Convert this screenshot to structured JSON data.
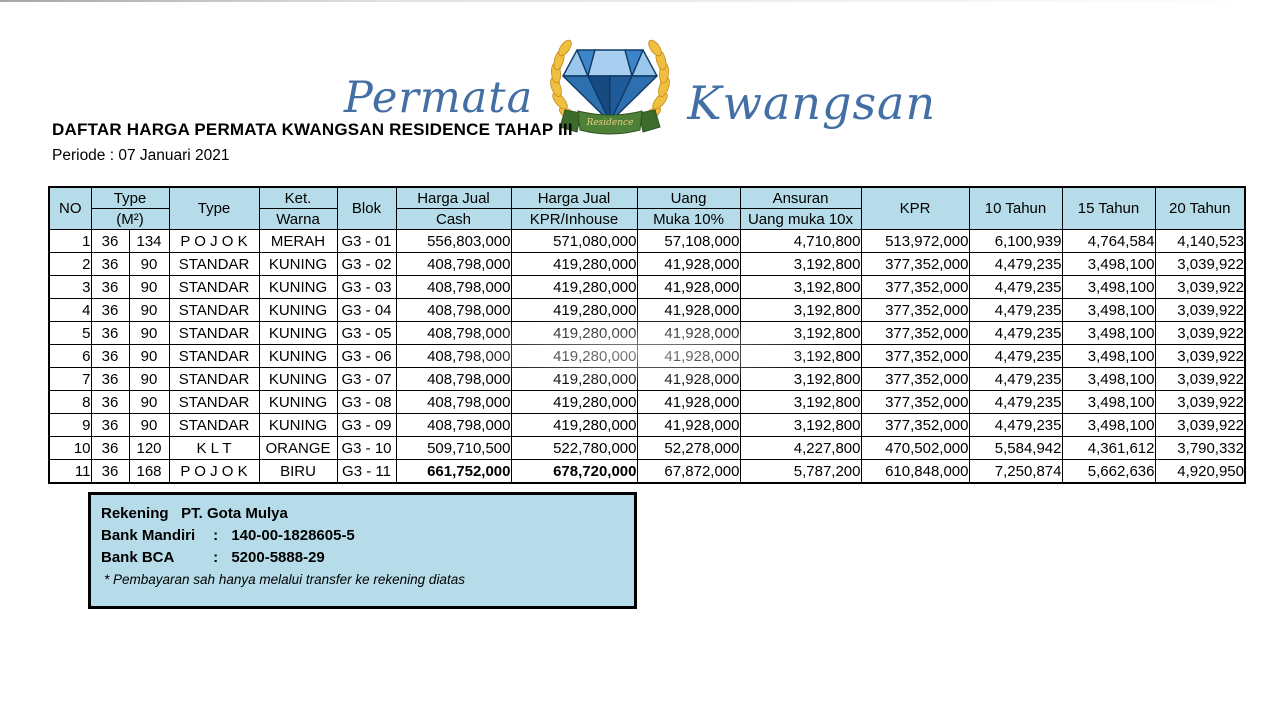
{
  "logo": {
    "left_script": "Permata",
    "right_script": "Kwangsan",
    "ribbon_label": "Residence",
    "script_color": "#436fa5",
    "laurel_color": "#efbf3f",
    "ribbon_color": "#4f8038",
    "diamond_colors": [
      "#a8cff0",
      "#3d85c8",
      "#2e6fb0",
      "#174a80",
      "#9cc7ec"
    ]
  },
  "doc": {
    "title": "DAFTAR HARGA PERMATA KWANGSAN RESIDENCE TAHAP III",
    "period": "Periode : 07 Januari 2021"
  },
  "table": {
    "header_fill": "#b5dce8",
    "columns": {
      "no": "NO",
      "type_m2_line1": "Type",
      "type_m2_line2": "(M²)",
      "type": "Type",
      "ket_line1": "Ket.",
      "ket_line2": "Warna",
      "blok": "Blok",
      "cash_line1": "Harga Jual",
      "cash_line2": "Cash",
      "kpr_inhouse_line1": "Harga Jual",
      "kpr_inhouse_line2": "KPR/Inhouse",
      "uang_line1": "Uang",
      "uang_line2": "Muka 10%",
      "ansuran_line1": "Ansuran",
      "ansuran_line2": "Uang muka 10x",
      "kpr": "KPR",
      "tahun10": "10 Tahun",
      "tahun15": "15 Tahun",
      "tahun20": "20 Tahun"
    },
    "rows": [
      {
        "cells": [
          "1",
          "36",
          "134",
          "P O J O K",
          "MERAH",
          "G3 - 01",
          "556,803,000",
          "571,080,000",
          "57,108,000",
          "4,710,800",
          "513,972,000",
          "6,100,939",
          "4,764,584",
          "4,140,523"
        ]
      },
      {
        "cells": [
          "2",
          "36",
          "90",
          "STANDAR",
          "KUNING",
          "G3 - 02",
          "408,798,000",
          "419,280,000",
          "41,928,000",
          "3,192,800",
          "377,352,000",
          "4,479,235",
          "3,498,100",
          "3,039,922"
        ]
      },
      {
        "cells": [
          "3",
          "36",
          "90",
          "STANDAR",
          "KUNING",
          "G3 - 03",
          "408,798,000",
          "419,280,000",
          "41,928,000",
          "3,192,800",
          "377,352,000",
          "4,479,235",
          "3,498,100",
          "3,039,922"
        ]
      },
      {
        "cells": [
          "4",
          "36",
          "90",
          "STANDAR",
          "KUNING",
          "G3 - 04",
          "408,798,000",
          "419,280,000",
          "41,928,000",
          "3,192,800",
          "377,352,000",
          "4,479,235",
          "3,498,100",
          "3,039,922"
        ]
      },
      {
        "cells": [
          "5",
          "36",
          "90",
          "STANDAR",
          "KUNING",
          "G3 - 05",
          "408,798,000",
          "419,280,000",
          "41,928,000",
          "3,192,800",
          "377,352,000",
          "4,479,235",
          "3,498,100",
          "3,039,922"
        ]
      },
      {
        "cells": [
          "6",
          "36",
          "90",
          "STANDAR",
          "KUNING",
          "G3 - 06",
          "408,798,000",
          "419,280,000",
          "41,928,000",
          "3,192,800",
          "377,352,000",
          "4,479,235",
          "3,498,100",
          "3,039,922"
        ]
      },
      {
        "cells": [
          "7",
          "36",
          "90",
          "STANDAR",
          "KUNING",
          "G3 - 07",
          "408,798,000",
          "419,280,000",
          "41,928,000",
          "3,192,800",
          "377,352,000",
          "4,479,235",
          "3,498,100",
          "3,039,922"
        ]
      },
      {
        "cells": [
          "8",
          "36",
          "90",
          "STANDAR",
          "KUNING",
          "G3 - 08",
          "408,798,000",
          "419,280,000",
          "41,928,000",
          "3,192,800",
          "377,352,000",
          "4,479,235",
          "3,498,100",
          "3,039,922"
        ]
      },
      {
        "cells": [
          "9",
          "36",
          "90",
          "STANDAR",
          "KUNING",
          "G3 - 09",
          "408,798,000",
          "419,280,000",
          "41,928,000",
          "3,192,800",
          "377,352,000",
          "4,479,235",
          "3,498,100",
          "3,039,922"
        ]
      },
      {
        "cells": [
          "10",
          "36",
          "120",
          "K L T",
          "ORANGE",
          "G3 - 10",
          "509,710,500",
          "522,780,000",
          "52,278,000",
          "4,227,800",
          "470,502,000",
          "5,584,942",
          "4,361,612",
          "3,790,332"
        ]
      },
      {
        "cells": [
          "11",
          "36",
          "168",
          "P O J O K",
          "BIRU",
          "G3 - 11",
          "661,752,000",
          "678,720,000",
          "67,872,000",
          "5,787,200",
          "610,848,000",
          "7,250,874",
          "5,662,636",
          "4,920,950"
        ],
        "bold_cols": [
          6,
          7
        ]
      }
    ]
  },
  "bank_box": {
    "fill": "#b5dce8",
    "company_label": "Rekening",
    "company_value": "PT. Gota Mulya",
    "mandiri_label": "Bank Mandiri",
    "mandiri_value": "140-00-1828605-5",
    "bca_label": "Bank BCA",
    "bca_value": "5200-5888-29",
    "colon": ":",
    "note": "* Pembayaran sah hanya melalui transfer ke rekening  diatas"
  }
}
